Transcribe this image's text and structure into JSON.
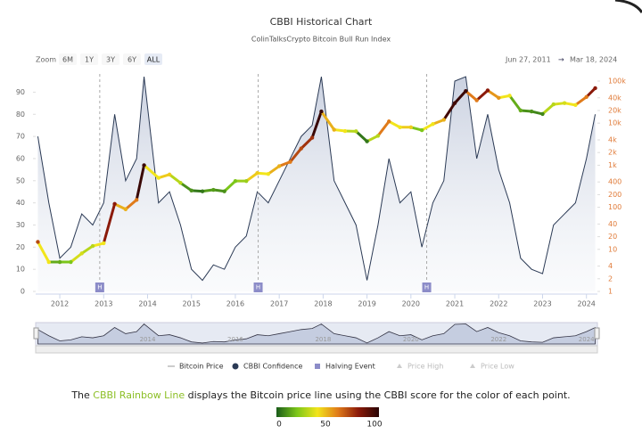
{
  "chart_data": {
    "type": "cbbi",
    "title": "CBBI Historical Chart",
    "subtitle": "ColinTalksCrypto Bitcoin Bull Run Index",
    "zoom_label": "Zoom",
    "zoom_buttons": [
      "6M",
      "1Y",
      "3Y",
      "6Y",
      "ALL"
    ],
    "range_from": "Jun 27, 2011",
    "range_sep": "→",
    "range_to": "Mar 18, 2024",
    "x": [
      2011.5,
      2011.75,
      2012.0,
      2012.25,
      2012.5,
      2012.75,
      2013.0,
      2013.25,
      2013.5,
      2013.75,
      2013.92,
      2014.25,
      2014.5,
      2014.75,
      2015.0,
      2015.25,
      2015.5,
      2015.75,
      2016.0,
      2016.25,
      2016.5,
      2016.75,
      2017.0,
      2017.25,
      2017.5,
      2017.75,
      2017.96,
      2018.25,
      2018.5,
      2018.75,
      2019.0,
      2019.25,
      2019.5,
      2019.75,
      2020.0,
      2020.25,
      2020.5,
      2020.75,
      2021.0,
      2021.25,
      2021.5,
      2021.75,
      2022.0,
      2022.25,
      2022.5,
      2022.75,
      2023.0,
      2023.25,
      2023.5,
      2023.75,
      2024.0,
      2024.2
    ],
    "series": [
      {
        "name": "Bitcoin Price",
        "axis": "y2",
        "color": "#e0a020",
        "values": [
          15,
          5,
          5,
          5,
          8,
          12,
          14,
          120,
          90,
          150,
          1000,
          500,
          600,
          380,
          250,
          240,
          260,
          240,
          420,
          420,
          650,
          620,
          950,
          1200,
          2500,
          4500,
          19000,
          7000,
          6500,
          6400,
          3700,
          5000,
          11000,
          8000,
          8000,
          6800,
          9500,
          12000,
          30000,
          58000,
          35000,
          60000,
          40000,
          45000,
          20000,
          19000,
          16500,
          28000,
          30000,
          27000,
          42000,
          68000
        ]
      },
      {
        "name": "CBBI Confidence",
        "color": "#2b3a55",
        "values": [
          70,
          40,
          15,
          20,
          35,
          30,
          40,
          80,
          50,
          60,
          97,
          40,
          45,
          30,
          10,
          5,
          12,
          10,
          20,
          25,
          45,
          40,
          50,
          60,
          70,
          75,
          97,
          50,
          40,
          30,
          5,
          30,
          60,
          40,
          45,
          20,
          40,
          50,
          95,
          97,
          60,
          80,
          55,
          40,
          15,
          10,
          8,
          30,
          35,
          40,
          60,
          80
        ]
      }
    ],
    "halvings": {
      "name": "Halving Event",
      "label": "H",
      "x": [
        2012.91,
        2016.52,
        2020.36
      ]
    },
    "legend_extra": [
      "Price High",
      "Price Low"
    ],
    "xlim": [
      2011.45,
      2024.25
    ],
    "xticks": [
      2012,
      2013,
      2014,
      2015,
      2016,
      2017,
      2018,
      2019,
      2020,
      2021,
      2022,
      2023,
      2024
    ],
    "ylim": [
      0,
      95
    ],
    "yticks": [
      0,
      10,
      20,
      30,
      40,
      50,
      60,
      70,
      80,
      90
    ],
    "y2lim": [
      1,
      100000
    ],
    "y2log": true,
    "y2ticks": [
      {
        "value": 1,
        "label": "1"
      },
      {
        "value": 2,
        "label": "2"
      },
      {
        "value": 4,
        "label": "4"
      },
      {
        "value": 10,
        "label": "10"
      },
      {
        "value": 20,
        "label": "20"
      },
      {
        "value": 40,
        "label": "40"
      },
      {
        "value": 100,
        "label": "100"
      },
      {
        "value": 200,
        "label": "200"
      },
      {
        "value": 400,
        "label": "400"
      },
      {
        "value": 1000,
        "label": "1k"
      },
      {
        "value": 2000,
        "label": "2k"
      },
      {
        "value": 4000,
        "label": "4k"
      },
      {
        "value": 10000,
        "label": "10k"
      },
      {
        "value": 20000,
        "label": "20k"
      },
      {
        "value": 40000,
        "label": "40k"
      },
      {
        "value": 100000,
        "label": "100k"
      }
    ],
    "navigator_xticks": [
      2014,
      2016,
      2018,
      2020,
      2022,
      2024
    ],
    "caption": [
      "The ",
      "CBBI Rainbow Line",
      " displays the Bitcoin price line using the CBBI score for the color of each point."
    ],
    "colorscale": [
      "#1a5c1a",
      "#7cc61a",
      "#f2e51b",
      "#e07b1a",
      "#8b1a0a",
      "#2a0505"
    ],
    "colorbar_ticks": [
      0,
      50,
      100
    ]
  }
}
